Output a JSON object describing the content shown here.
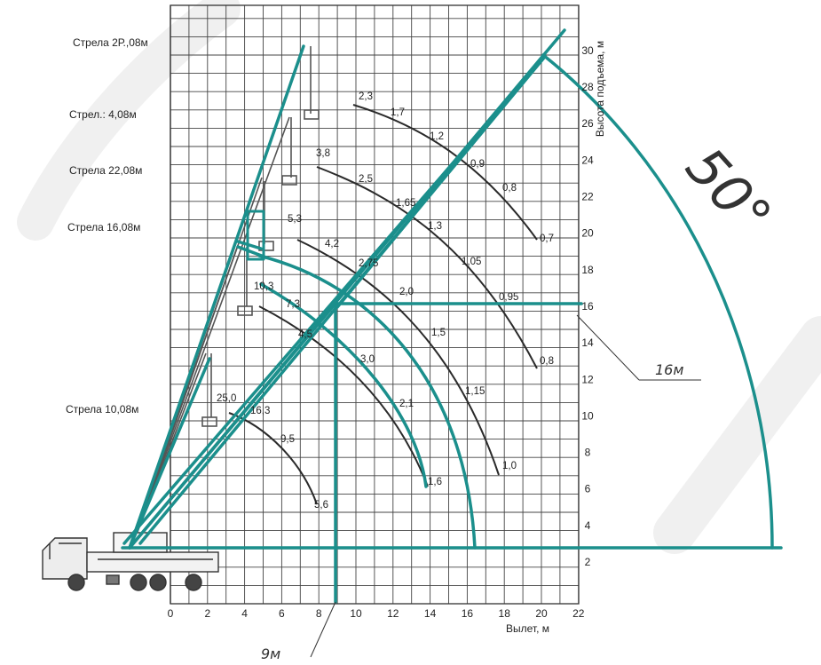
{
  "boom_labels": [
    {
      "id": "boom-label-28",
      "text": "Стрела 2Р.,08м"
    },
    {
      "id": "boom-label-34",
      "text": "Стрел.: 4,08м"
    },
    {
      "id": "boom-label-22",
      "text": "Стрела 22,08м"
    },
    {
      "id": "boom-label-16",
      "text": "Стрела 16,08м"
    },
    {
      "id": "boom-label-10",
      "text": "Стрела 10,08м"
    }
  ],
  "axes": {
    "x_label": "Вылет, м",
    "y_label": "Высота подъема, м",
    "x_ticks": [
      "0",
      "2",
      "4",
      "6",
      "8",
      "10",
      "12",
      "14",
      "16",
      "18",
      "20",
      "22"
    ],
    "y_ticks": [
      "2",
      "4",
      "6",
      "8",
      "10",
      "12",
      "14",
      "16",
      "18",
      "20",
      "22",
      "24",
      "26",
      "28",
      "30"
    ]
  },
  "load_labels": [
    "2,3",
    "1,7",
    "1,2",
    "0,9",
    "0,8",
    "0,7",
    "3,8",
    "2,5",
    "1,65",
    "1,3",
    "1,05",
    "0,95",
    "0,8",
    "5,3",
    "4,2",
    "2,75",
    "2,0",
    "1,5",
    "1,15",
    "1,0",
    "10,3",
    "7,3",
    "4,5",
    "3,0",
    "2,1",
    "1,6",
    "25,0",
    "16,3",
    "9,5",
    "5,6"
  ],
  "annotations": {
    "height_mark": "16м",
    "reach_mark": "9м",
    "angle": "50°"
  },
  "colors": {
    "teal": "#1b8f8c",
    "grid": "#444444",
    "curve": "#2a2a2a",
    "watermark": "#dcdcdc"
  }
}
